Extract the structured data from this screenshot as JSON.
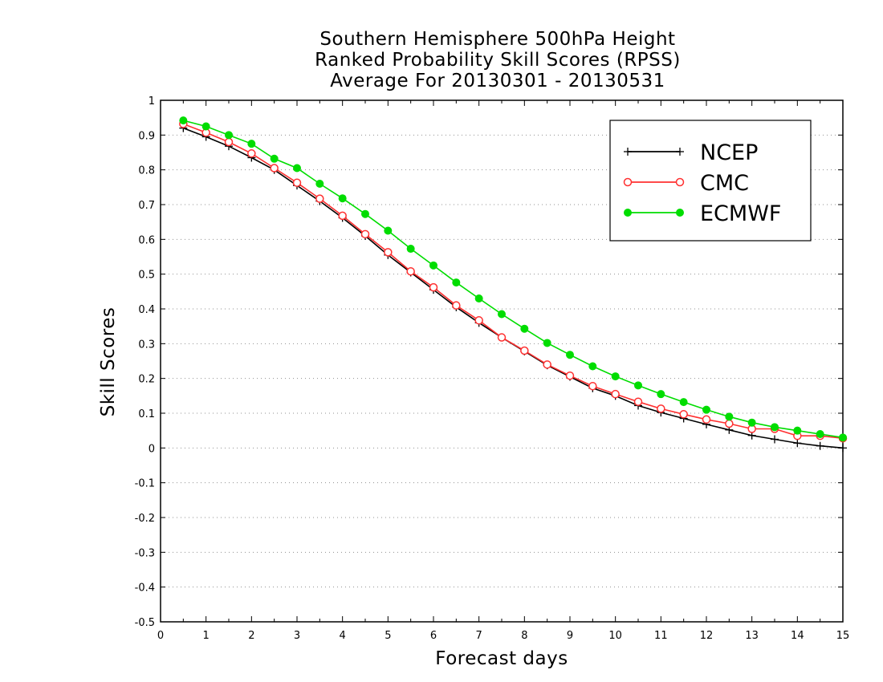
{
  "chart_data": {
    "type": "line",
    "title": [
      "Southern Hemisphere 500hPa Height",
      "Ranked Probability Skill Scores (RPSS)",
      "Average For 20130301 - 20130531"
    ],
    "xlabel": "Forecast days",
    "ylabel": "Skill Scores",
    "xlim": [
      0,
      15
    ],
    "ylim": [
      -0.5,
      1
    ],
    "xticks": [
      0,
      1,
      2,
      3,
      4,
      5,
      6,
      7,
      8,
      9,
      10,
      11,
      12,
      13,
      14,
      15
    ],
    "yticks": [
      -0.5,
      -0.4,
      -0.3,
      -0.2,
      -0.1,
      0,
      0.1,
      0.2,
      0.3,
      0.4,
      0.5,
      0.6,
      0.7,
      0.8,
      0.9,
      1
    ],
    "grid": "horizontal dotted",
    "legend_position": "top-right",
    "x": [
      0.5,
      1,
      1.5,
      2,
      2.5,
      3,
      3.5,
      4,
      4.5,
      5,
      5.5,
      6,
      6.5,
      7,
      7.5,
      8,
      8.5,
      9,
      9.5,
      10,
      10.5,
      11,
      11.5,
      12,
      12.5,
      13,
      13.5,
      14,
      14.5,
      15
    ],
    "series": [
      {
        "name": "NCEP",
        "color": "#000000",
        "marker": "plus",
        "values": [
          0.92,
          0.895,
          0.868,
          0.835,
          0.8,
          0.755,
          0.71,
          0.662,
          0.61,
          0.555,
          0.505,
          0.455,
          0.405,
          0.36,
          0.318,
          0.278,
          0.238,
          0.205,
          0.172,
          0.15,
          0.122,
          0.102,
          0.085,
          0.068,
          0.052,
          0.036,
          0.025,
          0.014,
          0.006,
          0.0
        ]
      },
      {
        "name": "CMC",
        "color": "#ff3030",
        "marker": "open-circle",
        "values": [
          0.932,
          0.907,
          0.88,
          0.847,
          0.805,
          0.763,
          0.717,
          0.668,
          0.615,
          0.563,
          0.508,
          0.462,
          0.41,
          0.367,
          0.318,
          0.28,
          0.24,
          0.208,
          0.178,
          0.155,
          0.133,
          0.113,
          0.097,
          0.082,
          0.07,
          0.055,
          0.055,
          0.035,
          0.035,
          0.028
        ]
      },
      {
        "name": "ECMWF",
        "color": "#00dd00",
        "marker": "filled-circle",
        "values": [
          0.942,
          0.925,
          0.9,
          0.875,
          0.832,
          0.805,
          0.76,
          0.718,
          0.673,
          0.625,
          0.573,
          0.525,
          0.476,
          0.43,
          0.385,
          0.343,
          0.302,
          0.268,
          0.235,
          0.206,
          0.18,
          0.155,
          0.132,
          0.11,
          0.09,
          0.073,
          0.06,
          0.05,
          0.04,
          0.03
        ]
      }
    ]
  }
}
